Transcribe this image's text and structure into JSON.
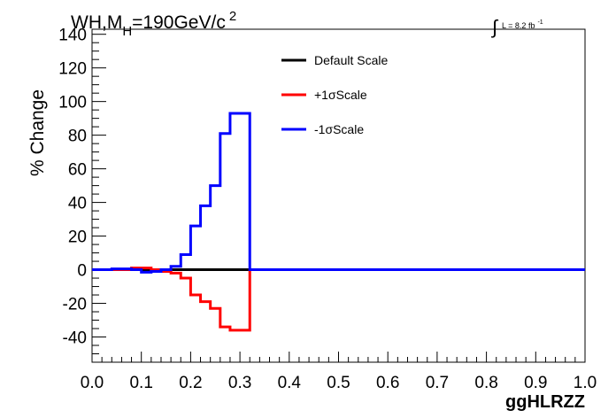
{
  "chart_data": {
    "type": "line",
    "title_parts": {
      "main": "WH,M",
      "sub": "H",
      "rest": "=190GeV/c",
      "sup": "2"
    },
    "lumi_parts": {
      "integral": "∫",
      "main": "L = 8.2 fb",
      "sup": "-1"
    },
    "xlabel": "ggHLRZZ",
    "ylabel": "% Change",
    "xlim": [
      0.0,
      1.0
    ],
    "ylim": [
      -55,
      143
    ],
    "xticks": [
      0.0,
      0.1,
      0.2,
      0.3,
      0.4,
      0.5,
      0.6,
      0.7,
      0.8,
      0.9,
      1.0
    ],
    "xtick_labels": [
      "0.0",
      "0.1",
      "0.2",
      "0.3",
      "0.4",
      "0.5",
      "0.6",
      "0.7",
      "0.8",
      "0.9",
      "1.0"
    ],
    "yticks": [
      -40,
      -20,
      0,
      20,
      40,
      60,
      80,
      100,
      120,
      140
    ],
    "ytick_labels": [
      "-40",
      "-20",
      "0",
      "20",
      "40",
      "60",
      "80",
      "100",
      "120",
      "140"
    ],
    "grid": false,
    "legend_position": "top-center",
    "bin_edges": [
      0.0,
      0.04,
      0.08,
      0.1,
      0.12,
      0.14,
      0.16,
      0.18,
      0.2,
      0.22,
      0.24,
      0.26,
      0.28,
      0.32,
      1.0
    ],
    "series": [
      {
        "name": "Default Scale",
        "color": "#000000",
        "values": [
          0,
          0,
          0,
          0,
          0,
          0,
          0,
          0,
          0,
          0,
          0,
          0,
          0,
          0
        ]
      },
      {
        "name": "+1σScale",
        "color": "#ff0000",
        "values": [
          0,
          0,
          1,
          1,
          0,
          -1,
          -2,
          -5,
          -15,
          -19,
          -23,
          -34,
          -36,
          0
        ]
      },
      {
        "name": "-1σScale",
        "color": "#0000ff",
        "values": [
          0,
          0.5,
          0,
          -1.5,
          -1,
          0,
          2,
          9,
          26,
          38,
          50,
          81,
          93,
          0
        ]
      }
    ]
  }
}
